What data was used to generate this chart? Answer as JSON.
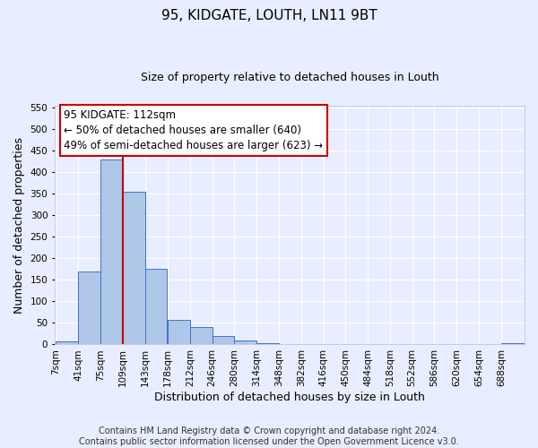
{
  "title": "95, KIDGATE, LOUTH, LN11 9BT",
  "subtitle": "Size of property relative to detached houses in Louth",
  "xlabel": "Distribution of detached houses by size in Louth",
  "ylabel": "Number of detached properties",
  "bin_labels": [
    "7sqm",
    "41sqm",
    "75sqm",
    "109sqm",
    "143sqm",
    "178sqm",
    "212sqm",
    "246sqm",
    "280sqm",
    "314sqm",
    "348sqm",
    "382sqm",
    "416sqm",
    "450sqm",
    "484sqm",
    "518sqm",
    "552sqm",
    "586sqm",
    "620sqm",
    "654sqm",
    "688sqm"
  ],
  "bin_edges": [
    7,
    41,
    75,
    109,
    143,
    178,
    212,
    246,
    280,
    314,
    348,
    382,
    416,
    450,
    484,
    518,
    552,
    586,
    620,
    654,
    688
  ],
  "bar_heights": [
    8,
    170,
    430,
    355,
    175,
    57,
    40,
    20,
    10,
    2,
    0,
    0,
    0,
    0,
    1,
    0,
    0,
    0,
    0,
    0,
    2
  ],
  "bar_color": "#aec6e8",
  "bar_edge_color": "#4472c4",
  "vline_x": 109,
  "vline_color": "#cc0000",
  "annotation_line1": "95 KIDGATE: 112sqm",
  "annotation_line2": "← 50% of detached houses are smaller (640)",
  "annotation_line3": "49% of semi-detached houses are larger (623) →",
  "annotation_box_color": "white",
  "annotation_box_edge_color": "#cc0000",
  "ylim": [
    0,
    555
  ],
  "yticks": [
    0,
    50,
    100,
    150,
    200,
    250,
    300,
    350,
    400,
    450,
    500,
    550
  ],
  "footer": "Contains HM Land Registry data © Crown copyright and database right 2024.\nContains public sector information licensed under the Open Government Licence v3.0.",
  "bg_color": "#e8eeff",
  "grid_color": "white",
  "title_fontsize": 11,
  "subtitle_fontsize": 9,
  "axis_label_fontsize": 9,
  "tick_fontsize": 7.5,
  "annotation_fontsize": 8.5,
  "footer_fontsize": 7
}
